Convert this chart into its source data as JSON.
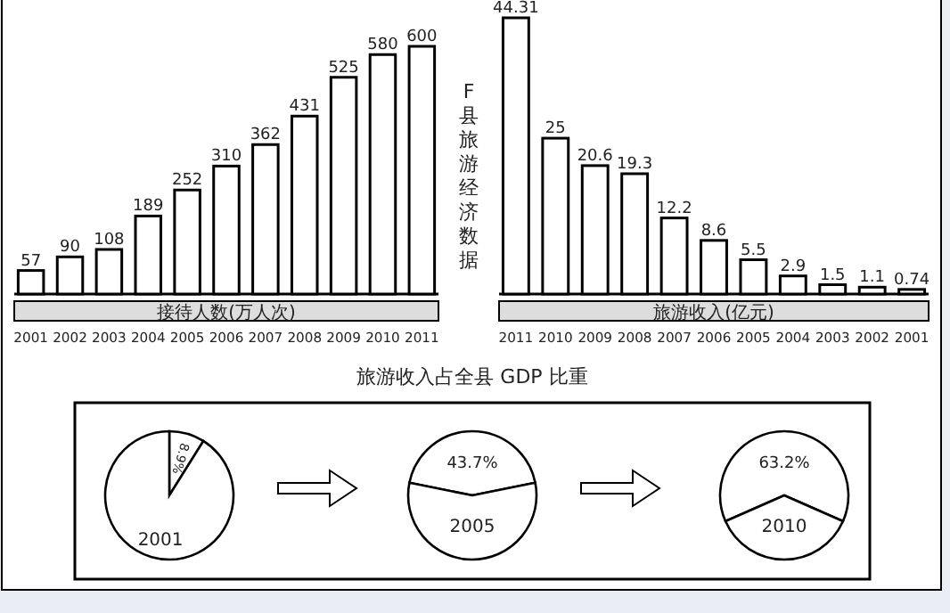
{
  "chart_data": [
    {
      "type": "bar",
      "xlabel": "接待人数(万人次)",
      "categories": [
        "2001",
        "2002",
        "2003",
        "2004",
        "2005",
        "2006",
        "2007",
        "2008",
        "2009",
        "2010",
        "2011"
      ],
      "values": [
        57,
        90,
        108,
        189,
        252,
        310,
        362,
        431,
        525,
        580,
        600
      ],
      "color": "#ffffff",
      "data_labels": true
    },
    {
      "type": "bar",
      "ylabel": "F县旅游经济数据",
      "xlabel": "旅游收入(亿元)",
      "categories": [
        "2011",
        "2010",
        "2009",
        "2008",
        "2007",
        "2006",
        "2005",
        "2004",
        "2003",
        "2002",
        "2001"
      ],
      "values": [
        44.31,
        25,
        20.6,
        19.3,
        12.2,
        8.6,
        5.5,
        2.9,
        1.5,
        1.1,
        0.74
      ],
      "color": "#ffffff",
      "data_labels": true
    },
    {
      "type": "pie",
      "categories": [
        null,
        null
      ],
      "values": [
        8.9,
        91.1
      ],
      "colors": [
        "#ffffff",
        "#ffffff"
      ],
      "value_labels": [
        "8.9%",
        null
      ],
      "annotations": [
        "2001"
      ]
    },
    {
      "type": "pie",
      "title": "旅游收入占全县 GDP 比重",
      "categories": [
        null,
        null
      ],
      "values": [
        43.7,
        56.3
      ],
      "colors": [
        "#ffffff",
        "#ffffff"
      ],
      "value_labels": [
        "43.7%",
        null
      ],
      "annotations": [
        "2005"
      ]
    },
    {
      "type": "pie",
      "categories": [
        null,
        null
      ],
      "values": [
        63.2,
        36.8
      ],
      "colors": [
        "#ffffff",
        "#ffffff"
      ],
      "value_labels": [
        "63.2%",
        null
      ],
      "annotations": [
        "2010"
      ]
    }
  ]
}
